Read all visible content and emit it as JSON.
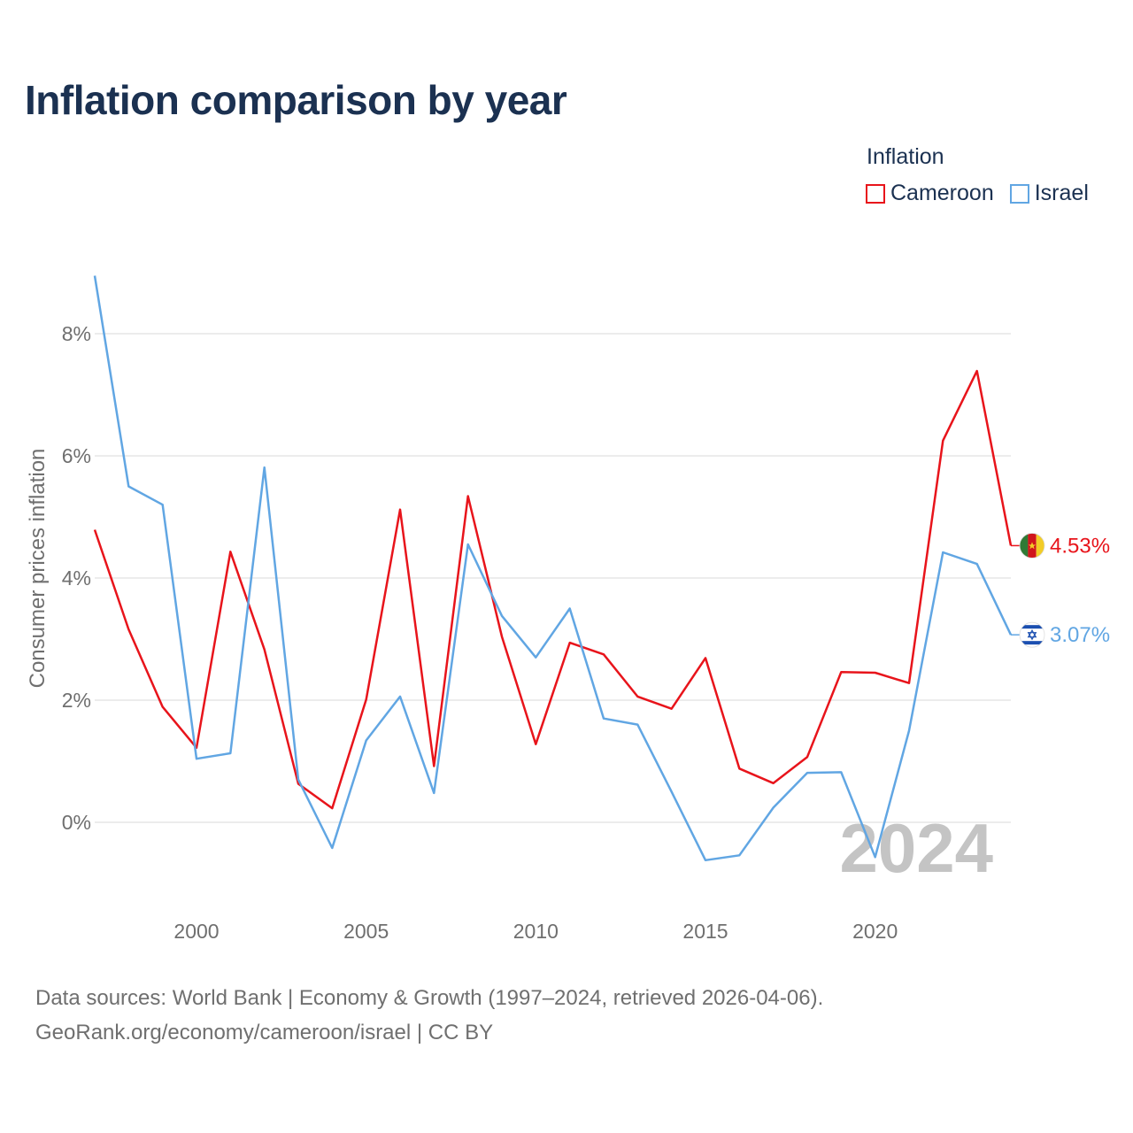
{
  "title": "Inflation comparison by year",
  "legend": {
    "title": "Inflation",
    "items": [
      {
        "name": "Cameroon",
        "color": "#e8141b"
      },
      {
        "name": "Israel",
        "color": "#61a6e3"
      }
    ]
  },
  "year_watermark": "2024",
  "footer": {
    "line1": "Data sources: World Bank | Economy & Growth (1997–2024, retrieved 2026-04-06).",
    "line2": "GeoRank.org/economy/cameroon/israel | CC BY"
  },
  "chart_data": {
    "type": "line",
    "title": "Inflation comparison by year",
    "xlabel": "",
    "ylabel": "Consumer prices inflation",
    "x": [
      1997,
      1998,
      1999,
      2000,
      2001,
      2002,
      2003,
      2004,
      2005,
      2006,
      2007,
      2008,
      2009,
      2010,
      2011,
      2012,
      2013,
      2014,
      2015,
      2016,
      2017,
      2018,
      2019,
      2020,
      2021,
      2022,
      2023,
      2024
    ],
    "xticks": [
      2000,
      2005,
      2010,
      2015,
      2020
    ],
    "xtick_labels": [
      "2000",
      "2005",
      "2010",
      "2015",
      "2020"
    ],
    "xlim": [
      1997,
      2024
    ],
    "yticks": [
      0,
      2,
      4,
      6,
      8
    ],
    "ytick_labels": [
      "0%",
      "2%",
      "4%",
      "6%",
      "8%"
    ],
    "ylim": [
      -1.2,
      9.0
    ],
    "grid": true,
    "series": [
      {
        "name": "Cameroon",
        "color": "#e8141b",
        "end_label": "4.53%",
        "values": [
          4.79,
          3.16,
          1.89,
          1.22,
          4.43,
          2.83,
          0.63,
          0.23,
          2.01,
          5.12,
          0.92,
          5.34,
          3.04,
          1.28,
          2.94,
          2.75,
          2.06,
          1.86,
          2.69,
          0.88,
          0.64,
          1.07,
          2.46,
          2.45,
          2.28,
          6.25,
          7.39,
          4.53
        ]
      },
      {
        "name": "Israel",
        "color": "#61a6e3",
        "end_label": "3.07%",
        "values": [
          8.95,
          5.5,
          5.2,
          1.04,
          1.13,
          5.81,
          0.7,
          -0.42,
          1.34,
          2.06,
          0.48,
          4.55,
          3.38,
          2.7,
          3.5,
          1.7,
          1.6,
          0.5,
          -0.62,
          -0.54,
          0.24,
          0.81,
          0.82,
          -0.57,
          1.5,
          4.42,
          4.23,
          3.07
        ]
      }
    ]
  }
}
